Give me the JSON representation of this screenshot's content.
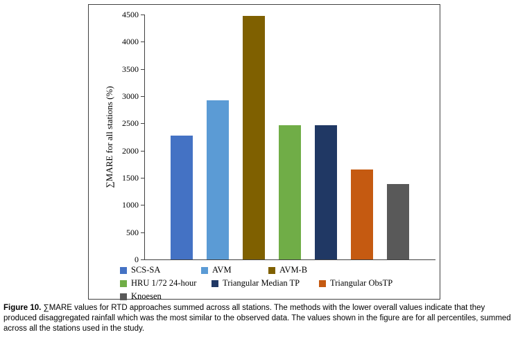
{
  "figure": {
    "caption_label": "Figure 10.",
    "caption_text": " ∑MARE values for RTD approaches summed across all stations. The methods with the lower overall values indicate that they produced disaggregated rainfall which was the most similar to the observed data. The values shown in the figure are for all percentiles, summed across all the stations used in the study."
  },
  "chart_data": {
    "type": "bar",
    "title": "",
    "xlabel": "",
    "ylabel": "∑MARE for all stations (%)",
    "ylim": [
      0,
      4500
    ],
    "ytick_interval": 500,
    "yticks": [
      0,
      500,
      1000,
      1500,
      2000,
      2500,
      3000,
      3500,
      4000,
      4500
    ],
    "grid": false,
    "legend_position": "bottom",
    "categories": [
      "SCS-SA",
      "AVM",
      "AVM-B",
      "HRU 1/72 24-hour",
      "Triangular Median TP",
      "Triangular ObsTP",
      "Knoesen"
    ],
    "values": [
      2280,
      2930,
      4480,
      2460,
      2470,
      1650,
      1380
    ],
    "colors": [
      "#4472C4",
      "#5B9BD5",
      "#7F6000",
      "#70AD47",
      "#203864",
      "#C55A11",
      "#595959"
    ]
  }
}
